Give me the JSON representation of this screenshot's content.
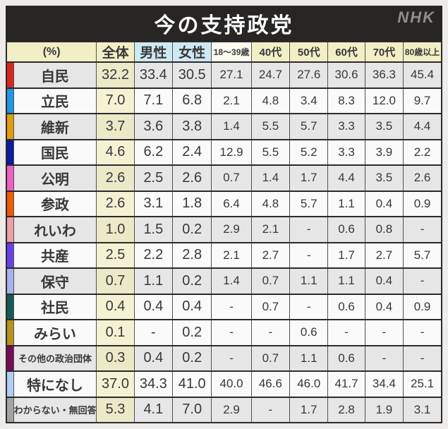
{
  "titlebar": {
    "title": "今の支持政党",
    "logo": "NHK",
    "background": "#282624",
    "title_color": "#ffffff",
    "logo_color": "#8f8f8f"
  },
  "colors": {
    "page_background": "#edecea",
    "row_gray": "#e6e6e6",
    "row_white": "#fafafa",
    "cream_on_gray_row": "#ece9c8",
    "cream_on_white_row": "#f5f2d4",
    "grid_dark": "#2b2b2b",
    "grid_light": "#525252"
  },
  "chart_data": {
    "type": "table",
    "title": "今の支持政党",
    "unit_header": "(%)",
    "columns": [
      {
        "label": "全体",
        "header_bg": "#f2efc6"
      },
      {
        "label": "男性",
        "header_bg": "#cde9f1"
      },
      {
        "label": "女性",
        "header_bg": "#cde9f1"
      },
      {
        "label": "18～39歳",
        "header_bg": "#fcfbf0"
      },
      {
        "label": "40代",
        "header_bg": "#f2efc6"
      },
      {
        "label": "50代",
        "header_bg": "#f2efc6"
      },
      {
        "label": "60代",
        "header_bg": "#f2efc6"
      },
      {
        "label": "70代",
        "header_bg": "#f2efc6"
      },
      {
        "label": "80歳以上",
        "header_bg": "#f2efc6"
      }
    ],
    "rows": [
      {
        "party": "自民",
        "bar_color": "#d7281e",
        "shade": "gray",
        "values": [
          "32.2",
          "33.4",
          "30.5",
          "27.1",
          "24.7",
          "27.6",
          "30.6",
          "36.3",
          "45.4"
        ]
      },
      {
        "party": "立民",
        "bar_color": "#1f97e5",
        "shade": "white",
        "values": [
          "7.0",
          "7.1",
          "6.8",
          "2.1",
          "4.8",
          "3.4",
          "8.3",
          "12.0",
          "9.7"
        ]
      },
      {
        "party": "維新",
        "bar_color": "#df9c0d",
        "shade": "gray",
        "values": [
          "3.7",
          "3.6",
          "3.8",
          "1.4",
          "5.5",
          "5.7",
          "3.3",
          "3.5",
          "4.4"
        ]
      },
      {
        "party": "国民",
        "bar_color": "#0b1a9e",
        "shade": "white",
        "values": [
          "4.6",
          "6.2",
          "2.4",
          "12.9",
          "5.5",
          "5.2",
          "3.3",
          "3.9",
          "2.2"
        ]
      },
      {
        "party": "公明",
        "bar_color": "#ec5fc4",
        "shade": "gray",
        "values": [
          "2.6",
          "2.5",
          "2.6",
          "0.7",
          "1.4",
          "1.7",
          "4.4",
          "3.5",
          "2.6"
        ]
      },
      {
        "party": "参政",
        "bar_color": "#ed5c00",
        "shade": "white",
        "values": [
          "2.6",
          "3.1",
          "1.8",
          "6.4",
          "4.8",
          "5.7",
          "1.1",
          "0.4",
          "0.9"
        ]
      },
      {
        "party": "れいわ",
        "bar_color": "#eb9fa6",
        "shade": "gray",
        "values": [
          "1.0",
          "1.5",
          "0.2",
          "2.9",
          "2.1",
          "-",
          "0.6",
          "0.8",
          "-"
        ]
      },
      {
        "party": "共産",
        "bar_color": "#6740e9",
        "shade": "white",
        "values": [
          "2.5",
          "2.2",
          "2.8",
          "2.1",
          "2.7",
          "-",
          "1.7",
          "2.7",
          "5.7"
        ]
      },
      {
        "party": "保守",
        "bar_color": "#a9b1ee",
        "shade": "gray",
        "values": [
          "0.7",
          "1.1",
          "0.2",
          "1.4",
          "0.7",
          "1.1",
          "1.1",
          "0.4",
          "-"
        ]
      },
      {
        "party": "社民",
        "bar_color": "#145a56",
        "shade": "white",
        "values": [
          "0.4",
          "0.4",
          "0.4",
          "-",
          "0.7",
          "-",
          "0.6",
          "0.4",
          "0.9"
        ]
      },
      {
        "party": "みらい",
        "bar_color": "#b8931a",
        "shade": "white",
        "values": [
          "0.1",
          "-",
          "0.2",
          "-",
          "-",
          "0.6",
          "-",
          "-",
          "-"
        ]
      },
      {
        "party": "その他の政治団体",
        "bar_color": "#770c55",
        "shade": "gray",
        "values": [
          "0.3",
          "0.4",
          "0.2",
          "-",
          "0.7",
          "1.1",
          "0.6",
          "-",
          "-"
        ]
      },
      {
        "party": "特になし",
        "bar_color": "#aecdf2",
        "shade": "white",
        "values": [
          "37.0",
          "34.3",
          "41.0",
          "40.0",
          "46.6",
          "46.0",
          "41.7",
          "34.4",
          "25.1"
        ]
      },
      {
        "party": "わからない・無回答",
        "bar_color": "#a3a3a3",
        "shade": "gray",
        "values": [
          "5.3",
          "4.1",
          "7.0",
          "2.9",
          "-",
          "1.7",
          "2.8",
          "1.9",
          "3.1"
        ]
      }
    ]
  }
}
